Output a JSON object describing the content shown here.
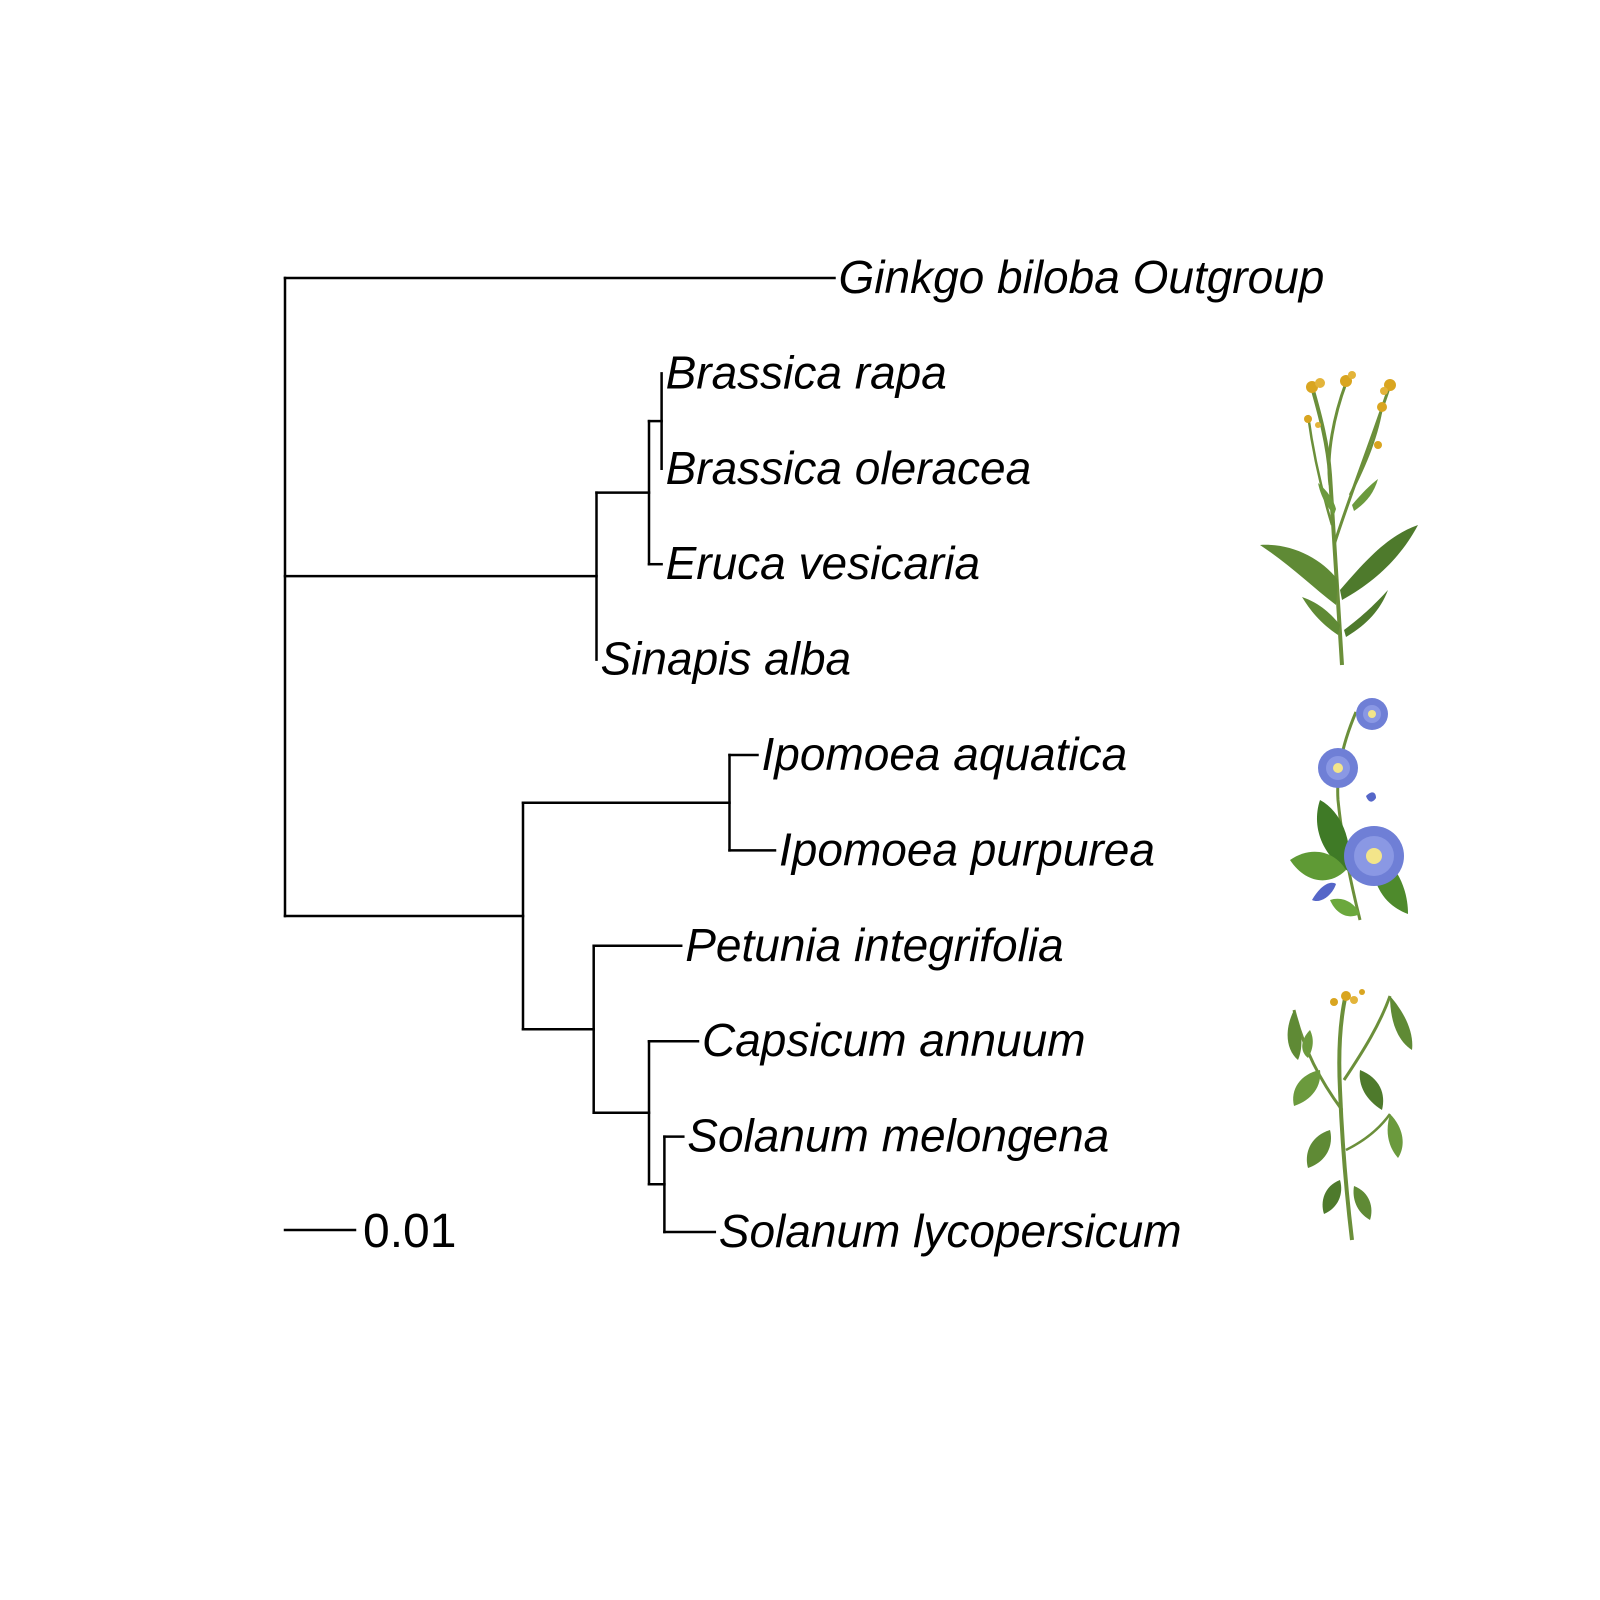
{
  "tree": {
    "name": "root",
    "length": 0,
    "children": [
      {
        "name": "Ginkgo biloba Outgroup",
        "length": 0.0785
      },
      {
        "name": "",
        "length": 0.0445,
        "children": [
          {
            "name": "",
            "length": 0.0075,
            "children": [
              {
                "name": "",
                "length": 0.0018,
                "children": [
                  {
                    "name": "Brassica rapa",
                    "length": 0
                  },
                  {
                    "name": "Brassica oleracea",
                    "length": 0
                  }
                ]
              },
              {
                "name": "Eruca vesicaria",
                "length": 0.0018
              }
            ]
          },
          {
            "name": "Sinapis alba",
            "length": 0
          }
        ]
      },
      {
        "name": "",
        "length": 0.034,
        "children": [
          {
            "name": "",
            "length": 0.0295,
            "children": [
              {
                "name": "Ipomoea aquatica",
                "length": 0.004
              },
              {
                "name": "Ipomoea purpurea",
                "length": 0.0065
              }
            ]
          },
          {
            "name": "",
            "length": 0.0101,
            "children": [
              {
                "name": "Petunia integrifolia",
                "length": 0.0125
              },
              {
                "name": "",
                "length": 0.0079,
                "children": [
                  {
                    "name": "Capsicum annuum",
                    "length": 0.007
                  },
                  {
                    "name": "",
                    "length": 0.0022,
                    "children": [
                      {
                        "name": "Solanum melongena",
                        "length": 0.0027
                      },
                      {
                        "name": "Solanum lycopersicum",
                        "length": 0.0072
                      }
                    ]
                  }
                ]
              }
            ]
          }
        ]
      }
    ]
  },
  "scale_bar": {
    "length": 0.01,
    "label": "0.01"
  },
  "illustrations": [
    {
      "name": "brassica-plant-icon",
      "clade": "Brassicaceae"
    },
    {
      "name": "morning-glory-flower-icon",
      "clade": "Ipomoea"
    },
    {
      "name": "tomato-plant-icon",
      "clade": "Solanaceae"
    }
  ],
  "colors": {
    "branch": "#000000",
    "leaf_green": "#5f8a35",
    "stem_green": "#6b8f3a",
    "petal_blue": "#6f7fd6",
    "flower_yellow": "#d9a520"
  }
}
